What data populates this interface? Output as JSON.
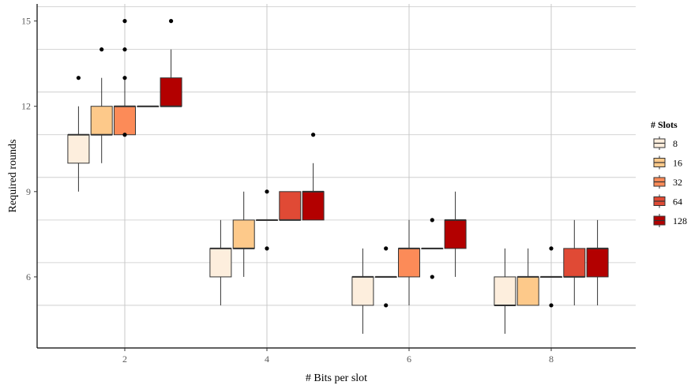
{
  "chart_data": {
    "type": "boxplot",
    "xlabel": "# Bits per slot",
    "ylabel": "Required rounds",
    "x_categories": [
      "2",
      "4",
      "6",
      "8"
    ],
    "y_ticks": [
      6,
      9,
      12,
      15
    ],
    "ylim": [
      3.5,
      15.6
    ],
    "grid": true,
    "legend": {
      "title": "# Slots",
      "position": "right",
      "entries": [
        "8",
        "16",
        "32",
        "64",
        "128"
      ]
    },
    "colors": [
      "#fdeedd",
      "#fdc98a",
      "#fc8b58",
      "#e04a35",
      "#b30000"
    ],
    "groups": [
      {
        "x": "2",
        "boxes": [
          {
            "slots": "8",
            "whisker_low": 9,
            "q1": 10,
            "median": 11,
            "q3": 11,
            "whisker_high": 12,
            "outliers": [
              13
            ]
          },
          {
            "slots": "16",
            "whisker_low": 10,
            "q1": 11,
            "median": 11,
            "q3": 12,
            "whisker_high": 13,
            "outliers": [
              14
            ]
          },
          {
            "slots": "32",
            "whisker_low": 11,
            "q1": 11,
            "median": 12,
            "q3": 12,
            "whisker_high": 13,
            "outliers": [
              15,
              14,
              13,
              11
            ]
          },
          {
            "slots": "64",
            "whisker_low": 12,
            "q1": 12,
            "median": 12,
            "q3": 12,
            "whisker_high": 12,
            "outliers": []
          },
          {
            "slots": "128",
            "whisker_low": 12,
            "q1": 12,
            "median": 12,
            "q3": 13,
            "whisker_high": 14,
            "outliers": [
              15
            ]
          }
        ]
      },
      {
        "x": "4",
        "boxes": [
          {
            "slots": "8",
            "whisker_low": 5,
            "q1": 6,
            "median": 7,
            "q3": 7,
            "whisker_high": 8,
            "outliers": []
          },
          {
            "slots": "16",
            "whisker_low": 6,
            "q1": 7,
            "median": 7,
            "q3": 8,
            "whisker_high": 9,
            "outliers": []
          },
          {
            "slots": "32",
            "whisker_low": 8,
            "q1": 8,
            "median": 8,
            "q3": 8,
            "whisker_high": 8,
            "outliers": [
              9,
              7
            ]
          },
          {
            "slots": "64",
            "whisker_low": 8,
            "q1": 8,
            "median": 8,
            "q3": 9,
            "whisker_high": 9,
            "outliers": []
          },
          {
            "slots": "128",
            "whisker_low": 8,
            "q1": 8,
            "median": 9,
            "q3": 9,
            "whisker_high": 10,
            "outliers": [
              11
            ]
          }
        ]
      },
      {
        "x": "6",
        "boxes": [
          {
            "slots": "8",
            "whisker_low": 4,
            "q1": 5,
            "median": 6,
            "q3": 6,
            "whisker_high": 7,
            "outliers": []
          },
          {
            "slots": "16",
            "whisker_low": 6,
            "q1": 6,
            "median": 6,
            "q3": 6,
            "whisker_high": 6,
            "outliers": [
              7,
              5
            ]
          },
          {
            "slots": "32",
            "whisker_low": 5,
            "q1": 6,
            "median": 7,
            "q3": 7,
            "whisker_high": 8,
            "outliers": []
          },
          {
            "slots": "64",
            "whisker_low": 7,
            "q1": 7,
            "median": 7,
            "q3": 7,
            "whisker_high": 7,
            "outliers": [
              8,
              6
            ]
          },
          {
            "slots": "128",
            "whisker_low": 6,
            "q1": 7,
            "median": 8,
            "q3": 8,
            "whisker_high": 9,
            "outliers": []
          }
        ]
      },
      {
        "x": "8",
        "boxes": [
          {
            "slots": "8",
            "whisker_low": 4,
            "q1": 5,
            "median": 5,
            "q3": 6,
            "whisker_high": 7,
            "outliers": []
          },
          {
            "slots": "16",
            "whisker_low": 5,
            "q1": 5,
            "median": 6,
            "q3": 6,
            "whisker_high": 7,
            "outliers": []
          },
          {
            "slots": "32",
            "whisker_low": 6,
            "q1": 6,
            "median": 6,
            "q3": 6,
            "whisker_high": 6,
            "outliers": [
              7,
              5
            ]
          },
          {
            "slots": "64",
            "whisker_low": 5,
            "q1": 6,
            "median": 6,
            "q3": 7,
            "whisker_high": 8,
            "outliers": []
          },
          {
            "slots": "128",
            "whisker_low": 5,
            "q1": 6,
            "median": 7,
            "q3": 7,
            "whisker_high": 8,
            "outliers": []
          }
        ]
      }
    ]
  }
}
